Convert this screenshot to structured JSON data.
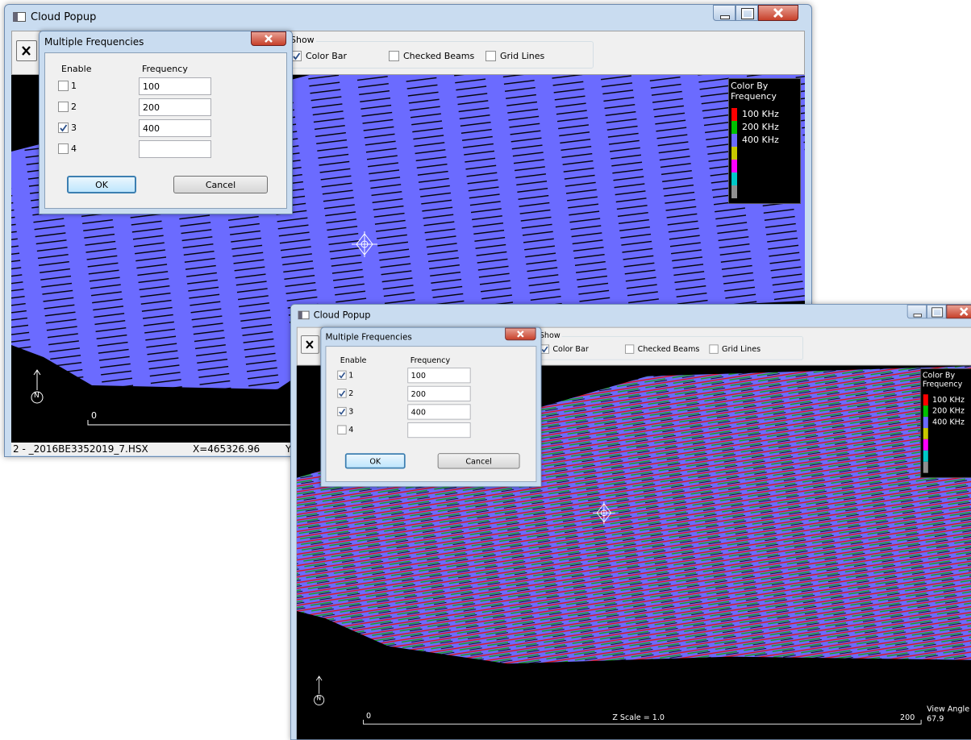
{
  "windows": [
    {
      "title": "Cloud Popup",
      "show_group": {
        "label": "Show",
        "options": [
          {
            "label": "Color Bar",
            "checked": true
          },
          {
            "label": "Checked Beams",
            "checked": false
          },
          {
            "label": "Grid Lines",
            "checked": false
          }
        ]
      },
      "dialog": {
        "title": "Multiple Frequencies",
        "enable_header": "Enable",
        "frequency_header": "Frequency",
        "rows": [
          {
            "label": "1",
            "checked": false,
            "frequency": "100"
          },
          {
            "label": "2",
            "checked": false,
            "frequency": "200"
          },
          {
            "label": "3",
            "checked": true,
            "frequency": "400"
          },
          {
            "label": "4",
            "checked": false
          }
        ],
        "ok": "OK",
        "cancel": "Cancel"
      },
      "legend": {
        "title": "Color By Frequency",
        "entries": [
          {
            "label": "100 KHz",
            "color": "#ff0000"
          },
          {
            "label": "200 KHz",
            "color": "#00c000"
          },
          {
            "label": "400 KHz",
            "color": "#6b6bff"
          }
        ],
        "extra_colors": [
          "#c8c800",
          "#ff00ff",
          "#00c8c8",
          "#909090"
        ]
      },
      "north_label": "N",
      "scale_start": "0",
      "status": [
        "2 - _2016BE3352019_7.HSX",
        "X=465326.96",
        "Y="
      ]
    },
    {
      "title": "Cloud Popup",
      "show_group": {
        "label": "Show",
        "options": [
          {
            "label": "Color Bar",
            "checked": true
          },
          {
            "label": "Checked Beams",
            "checked": false
          },
          {
            "label": "Grid Lines",
            "checked": false
          }
        ]
      },
      "dialog": {
        "title": "Multiple Frequencies",
        "enable_header": "Enable",
        "frequency_header": "Frequency",
        "rows": [
          {
            "label": "1",
            "checked": true,
            "frequency": "100"
          },
          {
            "label": "2",
            "checked": true,
            "frequency": "200"
          },
          {
            "label": "3",
            "checked": true,
            "frequency": "400"
          },
          {
            "label": "4",
            "checked": false
          }
        ],
        "ok": "OK",
        "cancel": "Cancel"
      },
      "legend": {
        "title": "Color By Frequency",
        "entries": [
          {
            "label": "100 KHz",
            "color": "#ff0000"
          },
          {
            "label": "200 KHz",
            "color": "#00c000"
          },
          {
            "label": "400 KHz",
            "color": "#6b6bff"
          }
        ],
        "extra_colors": [
          "#c8c800",
          "#ff00ff",
          "#00c8c8",
          "#909090"
        ]
      },
      "north_label": "N",
      "scale_start": "0",
      "scale_end": "200",
      "z_scale": "Z Scale = 1.0",
      "view_angle_label": "View Angle",
      "view_angle": "67.9"
    }
  ]
}
